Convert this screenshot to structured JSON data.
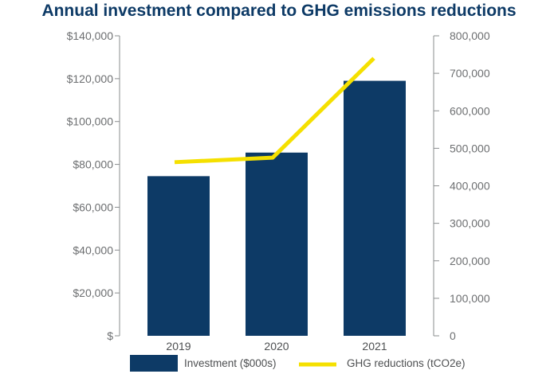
{
  "chart_data": {
    "type": "bar",
    "title": "Annual investment compared to GHG emissions reductions",
    "categories": [
      "2019",
      "2020",
      "2021"
    ],
    "series": [
      {
        "name": "Investment ($000s)",
        "type": "bar",
        "axis": "left",
        "color": "#0d3a66",
        "values": [
          74500,
          85500,
          119000
        ]
      },
      {
        "name": "GHG reductions (tCO2e)",
        "type": "line",
        "axis": "right",
        "color": "#f5e000",
        "values": [
          463000,
          475000,
          740000
        ]
      }
    ],
    "y_left": {
      "ylim": [
        0,
        140000
      ],
      "ticks": [
        0,
        20000,
        40000,
        60000,
        80000,
        100000,
        120000,
        140000
      ],
      "tick_labels": [
        "$",
        "$20,000",
        "$40,000",
        "$60,000",
        "$80,000",
        "$100,000",
        "$120,000",
        "$140,000"
      ]
    },
    "y_right": {
      "ylim": [
        0,
        800000
      ],
      "ticks": [
        0,
        100000,
        200000,
        300000,
        400000,
        500000,
        600000,
        700000,
        800000
      ],
      "tick_labels": [
        "0",
        "100,000",
        "200,000",
        "300,000",
        "400,000",
        "500,000",
        "600,000",
        "700,000",
        "800,000"
      ]
    },
    "grid": false,
    "legend": {
      "placement": "bottom",
      "items": [
        {
          "label": "Investment ($000s)",
          "color": "#0d3a66",
          "kind": "bar"
        },
        {
          "label": "GHG reductions (tCO2e)",
          "color": "#f5e000",
          "kind": "line"
        }
      ]
    }
  }
}
